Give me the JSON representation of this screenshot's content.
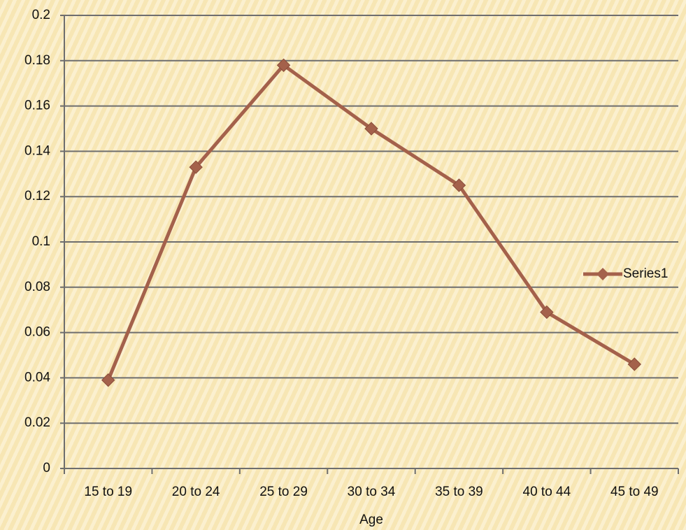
{
  "chart_data": {
    "type": "line",
    "x_label": "Age",
    "categories": [
      "15 to 19",
      "20 to 24",
      "25 to 29",
      "30 to 34",
      "35 to 39",
      "40 to 44",
      "45 to 49"
    ],
    "series": [
      {
        "name": "Series1",
        "color": "#a4614b",
        "values": [
          0.039,
          0.133,
          0.178,
          0.15,
          0.125,
          0.069,
          0.046
        ]
      }
    ],
    "ylim": [
      0,
      0.2
    ],
    "yticks": [
      0,
      0.02,
      0.04,
      0.06,
      0.08,
      0.1,
      0.12,
      0.14,
      0.16,
      0.18,
      0.2
    ],
    "grid": true,
    "legend": "right"
  }
}
